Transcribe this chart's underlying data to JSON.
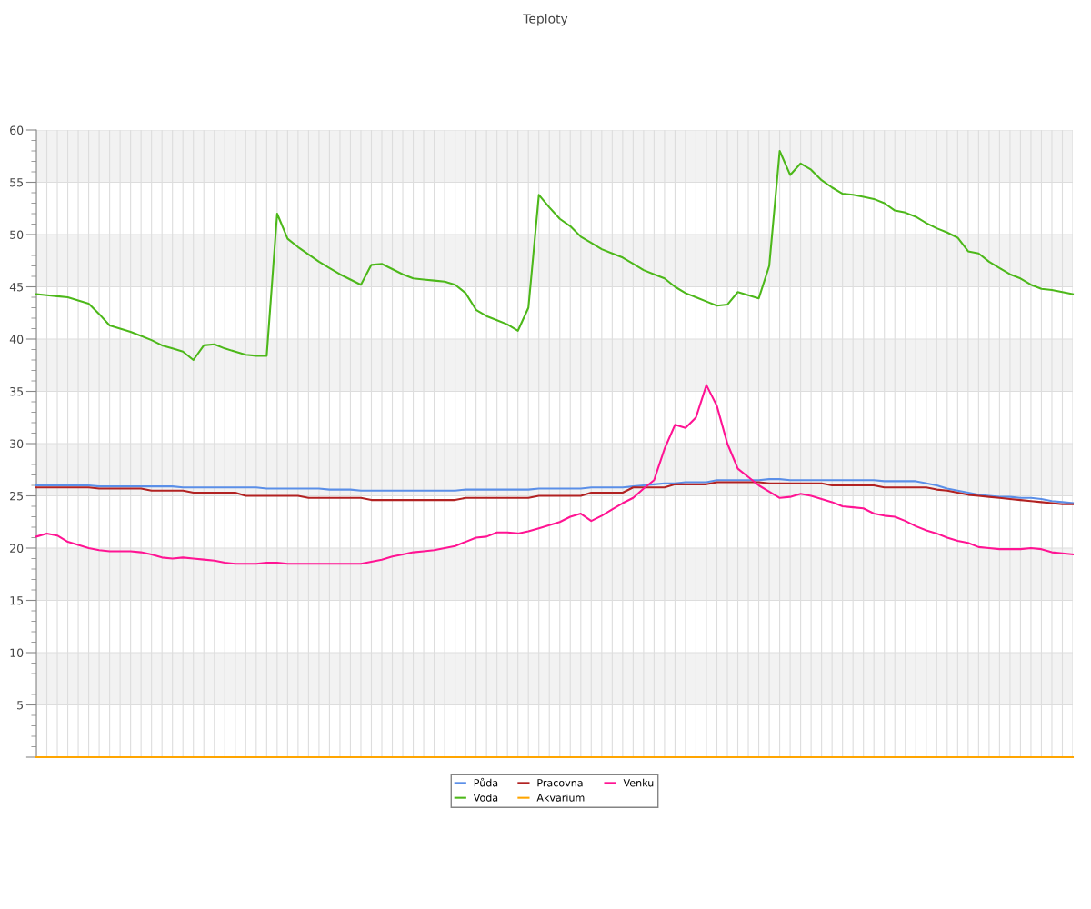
{
  "chart_data": {
    "type": "line",
    "title": "Teploty",
    "categories": [
      null,
      null,
      null,
      null,
      null,
      null,
      null,
      null,
      null,
      null,
      null,
      null,
      null,
      null,
      null,
      null,
      null,
      null,
      null,
      null,
      null,
      null,
      null,
      null,
      null,
      null,
      null,
      null,
      null,
      null,
      null,
      null,
      null,
      null,
      null,
      null,
      null,
      null,
      null,
      null,
      null,
      null,
      null,
      null,
      null,
      null,
      null,
      null,
      null,
      null,
      null,
      null,
      null,
      null,
      null,
      null,
      null,
      null,
      null,
      null,
      null,
      null,
      null,
      null,
      null,
      null,
      null,
      null,
      null,
      null,
      null,
      null,
      null,
      null,
      null,
      null,
      null,
      null,
      null,
      null,
      null,
      null,
      null,
      null,
      null,
      null,
      null,
      null,
      null,
      null,
      null,
      null,
      null,
      null,
      null,
      null,
      null,
      null,
      null,
      null
    ],
    "series": [
      {
        "name": "Půda",
        "color": "#5b8fe8",
        "values": [
          26.0,
          26.0,
          26.0,
          26.0,
          26.0,
          26.0,
          25.9,
          25.9,
          25.9,
          25.9,
          25.9,
          25.9,
          25.9,
          25.9,
          25.8,
          25.8,
          25.8,
          25.8,
          25.8,
          25.8,
          25.8,
          25.8,
          25.7,
          25.7,
          25.7,
          25.7,
          25.7,
          25.7,
          25.6,
          25.6,
          25.6,
          25.5,
          25.5,
          25.5,
          25.5,
          25.5,
          25.5,
          25.5,
          25.5,
          25.5,
          25.5,
          25.6,
          25.6,
          25.6,
          25.6,
          25.6,
          25.6,
          25.6,
          25.7,
          25.7,
          25.7,
          25.7,
          25.7,
          25.8,
          25.8,
          25.8,
          25.8,
          25.9,
          26.0,
          26.1,
          26.2,
          26.2,
          26.3,
          26.3,
          26.3,
          26.5,
          26.5,
          26.5,
          26.5,
          26.5,
          26.6,
          26.6,
          26.5,
          26.5,
          26.5,
          26.5,
          26.5,
          26.5,
          26.5,
          26.5,
          26.5,
          26.4,
          26.4,
          26.4,
          26.4,
          26.2,
          26.0,
          25.7,
          25.5,
          25.3,
          25.1,
          25.0,
          24.9,
          24.9,
          24.8,
          24.8,
          24.7,
          24.5,
          24.4,
          24.3
        ]
      },
      {
        "name": "Voda",
        "color": "#4db81a",
        "values": [
          44.3,
          44.2,
          44.1,
          44.0,
          43.7,
          43.4,
          42.4,
          41.3,
          41.0,
          40.7,
          40.3,
          39.9,
          39.4,
          39.1,
          38.8,
          38.0,
          39.4,
          39.5,
          39.1,
          38.8,
          38.5,
          38.4,
          38.4,
          52.0,
          49.6,
          48.8,
          48.1,
          47.4,
          46.8,
          46.2,
          45.7,
          45.2,
          47.1,
          47.2,
          46.7,
          46.2,
          45.8,
          45.7,
          45.6,
          45.5,
          45.2,
          44.4,
          42.8,
          42.2,
          41.8,
          41.4,
          40.8,
          43.0,
          53.8,
          52.6,
          51.5,
          50.8,
          49.8,
          49.2,
          48.6,
          48.2,
          47.8,
          47.2,
          46.6,
          46.2,
          45.8,
          45.0,
          44.4,
          44.0,
          43.6,
          43.2,
          43.3,
          44.5,
          44.2,
          43.9,
          47.0,
          58.0,
          55.7,
          56.8,
          56.2,
          55.2,
          54.5,
          53.9,
          53.8,
          53.6,
          53.4,
          53.0,
          52.3,
          52.1,
          51.7,
          51.1,
          50.6,
          50.2,
          49.7,
          48.4,
          48.2,
          47.4,
          46.8,
          46.2,
          45.8,
          45.2,
          44.8,
          44.7,
          44.5,
          44.3
        ]
      },
      {
        "name": "Pracovna",
        "color": "#b22222",
        "values": [
          25.8,
          25.8,
          25.8,
          25.8,
          25.8,
          25.8,
          25.7,
          25.7,
          25.7,
          25.7,
          25.7,
          25.5,
          25.5,
          25.5,
          25.5,
          25.3,
          25.3,
          25.3,
          25.3,
          25.3,
          25.0,
          25.0,
          25.0,
          25.0,
          25.0,
          25.0,
          24.8,
          24.8,
          24.8,
          24.8,
          24.8,
          24.8,
          24.6,
          24.6,
          24.6,
          24.6,
          24.6,
          24.6,
          24.6,
          24.6,
          24.6,
          24.8,
          24.8,
          24.8,
          24.8,
          24.8,
          24.8,
          24.8,
          25.0,
          25.0,
          25.0,
          25.0,
          25.0,
          25.3,
          25.3,
          25.3,
          25.3,
          25.8,
          25.8,
          25.8,
          25.8,
          26.1,
          26.1,
          26.1,
          26.1,
          26.3,
          26.3,
          26.3,
          26.3,
          26.3,
          26.2,
          26.2,
          26.2,
          26.2,
          26.2,
          26.2,
          26.0,
          26.0,
          26.0,
          26.0,
          26.0,
          25.8,
          25.8,
          25.8,
          25.8,
          25.8,
          25.6,
          25.5,
          25.3,
          25.1,
          25.0,
          24.9,
          24.8,
          24.7,
          24.6,
          24.5,
          24.4,
          24.3,
          24.2,
          24.2
        ]
      },
      {
        "name": "Akvarium",
        "color": "#ffa500",
        "values": [
          0,
          0,
          0,
          0,
          0,
          0,
          0,
          0,
          0,
          0,
          0,
          0,
          0,
          0,
          0,
          0,
          0,
          0,
          0,
          0,
          0,
          0,
          0,
          0,
          0,
          0,
          0,
          0,
          0,
          0,
          0,
          0,
          0,
          0,
          0,
          0,
          0,
          0,
          0,
          0,
          0,
          0,
          0,
          0,
          0,
          0,
          0,
          0,
          0,
          0,
          0,
          0,
          0,
          0,
          0,
          0,
          0,
          0,
          0,
          0,
          0,
          0,
          0,
          0,
          0,
          0,
          0,
          0,
          0,
          0,
          0,
          0,
          0,
          0,
          0,
          0,
          0,
          0,
          0,
          0,
          0,
          0,
          0,
          0,
          0,
          0,
          0,
          0,
          0,
          0,
          0,
          0,
          0,
          0,
          0,
          0,
          0,
          0,
          0,
          0
        ]
      },
      {
        "name": "Venku",
        "color": "#ff1493",
        "values": [
          21.1,
          21.4,
          21.2,
          20.6,
          20.3,
          20.0,
          19.8,
          19.7,
          19.7,
          19.7,
          19.6,
          19.4,
          19.1,
          19.0,
          19.1,
          19.0,
          18.9,
          18.8,
          18.6,
          18.5,
          18.5,
          18.5,
          18.6,
          18.6,
          18.5,
          18.5,
          18.5,
          18.5,
          18.5,
          18.5,
          18.5,
          18.5,
          18.7,
          18.9,
          19.2,
          19.4,
          19.6,
          19.7,
          19.8,
          20.0,
          20.2,
          20.6,
          21.0,
          21.1,
          21.5,
          21.5,
          21.4,
          21.6,
          21.9,
          22.2,
          22.5,
          23.0,
          23.3,
          22.6,
          23.1,
          23.7,
          24.3,
          24.8,
          25.7,
          26.5,
          29.5,
          31.8,
          31.5,
          32.5,
          35.6,
          33.6,
          30.0,
          27.6,
          26.8,
          26.0,
          25.4,
          24.8,
          24.9,
          25.2,
          25.0,
          24.7,
          24.4,
          24.0,
          23.9,
          23.8,
          23.3,
          23.1,
          23.0,
          22.6,
          22.1,
          21.7,
          21.4,
          21.0,
          20.7,
          20.5,
          20.1,
          20.0,
          19.9,
          19.9,
          19.9,
          20.0,
          19.9,
          19.6,
          19.5,
          19.4
        ]
      }
    ],
    "ylim": [
      0,
      60
    ],
    "yticks": [
      {
        "value": 0,
        "label": null
      },
      5,
      10,
      15,
      20,
      25,
      30,
      35,
      40,
      45,
      50,
      55,
      60
    ],
    "bands": [
      {
        "axis": "y",
        "from": 55,
        "to": 60,
        "color": "#f2f2f2"
      },
      {
        "axis": "y",
        "from": 45,
        "to": 50,
        "color": "#f2f2f2"
      },
      {
        "axis": "y",
        "from": 35,
        "to": 40,
        "color": "#f2f2f2"
      },
      {
        "axis": "y",
        "from": 25,
        "to": 30,
        "color": "#f2f2f2"
      },
      {
        "axis": "y",
        "from": 15,
        "to": 20,
        "color": "#f2f2f2"
      },
      {
        "axis": "y",
        "from": 5,
        "to": 10,
        "color": "#f2f2f2"
      }
    ],
    "grid": true,
    "legend": "bottom",
    "marker": "none",
    "line_style": "solid"
  }
}
